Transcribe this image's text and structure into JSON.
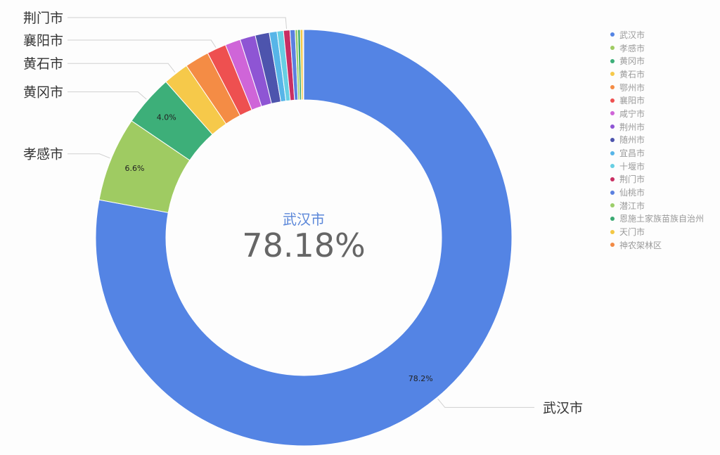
{
  "chart_data": {
    "type": "pie",
    "subtype": "donut",
    "categories": [
      "武汉市",
      "孝感市",
      "黄冈市",
      "黄石市",
      "鄂州市",
      "襄阳市",
      "咸宁市",
      "荆州市",
      "随州市",
      "宜昌市",
      "十堰市",
      "荆门市",
      "仙桃市",
      "潜江市",
      "恩施土家族苗族自治州",
      "天门市",
      "神农架林区"
    ],
    "values": [
      78.18,
      6.6,
      4.0,
      2.0,
      1.9,
      1.5,
      1.2,
      1.2,
      1.1,
      0.6,
      0.5,
      0.5,
      0.4,
      0.2,
      0.2,
      0.2,
      0.02
    ],
    "colors": [
      "#5484e4",
      "#9fcb62",
      "#3daf79",
      "#f6c94a",
      "#f48c45",
      "#ee5050",
      "#cf65d8",
      "#8e55d4",
      "#4d54ad",
      "#57b5e8",
      "#67cfe3",
      "#c92f62",
      "#5b80e0",
      "#9cce6a",
      "#3aa972",
      "#f3c744",
      "#f28a45"
    ],
    "data_labels": [
      {
        "category": "武汉市",
        "text": "78.2%"
      },
      {
        "category": "孝感市",
        "text": "6.6%"
      },
      {
        "category": "黄冈市",
        "text": "4.0%"
      }
    ],
    "outer_labels": [
      "荆门市",
      "襄阳市",
      "黄石市",
      "黄冈市",
      "孝感市",
      "武汉市"
    ],
    "center": {
      "name": "武汉市",
      "value": "78.18%"
    },
    "legend_position": "right"
  }
}
